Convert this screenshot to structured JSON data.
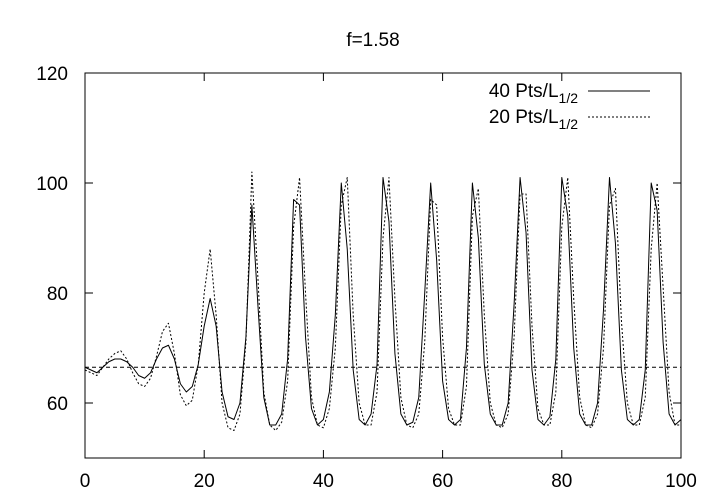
{
  "chart_data": {
    "type": "line",
    "title": "f=1.58",
    "xlabel": "",
    "ylabel": "",
    "xlim": [
      0,
      100
    ],
    "ylim": [
      50,
      120
    ],
    "x_ticks": [
      0,
      20,
      40,
      60,
      80,
      100
    ],
    "y_ticks": [
      60,
      80,
      100,
      120
    ],
    "x_tick_labels": [
      "0",
      "20",
      "40",
      "60",
      "80",
      "100"
    ],
    "y_tick_labels": [
      "60",
      "80",
      "100",
      "120"
    ],
    "legend_position": "top-right",
    "series": [
      {
        "name": "40 Pts/L",
        "name_sub": "1/2",
        "style": "solid",
        "color": "#000000",
        "x": [
          0,
          1,
          2,
          3,
          4,
          5,
          6,
          7,
          8,
          9,
          10,
          11,
          12,
          13,
          14,
          15,
          16,
          17,
          18,
          19,
          20,
          21,
          22,
          23,
          24,
          25,
          26,
          27,
          28,
          29,
          30,
          31,
          32,
          33,
          34,
          35,
          36,
          37,
          38,
          39,
          40,
          41,
          42,
          43,
          44,
          45,
          46,
          47,
          48,
          49,
          50,
          51,
          52,
          53,
          54,
          55,
          56,
          57,
          58,
          59,
          60,
          61,
          62,
          63,
          64,
          65,
          66,
          67,
          68,
          69,
          70,
          71,
          72,
          73,
          74,
          75,
          76,
          77,
          78,
          79,
          80,
          81,
          82,
          83,
          84,
          85,
          86,
          87,
          88,
          89,
          90,
          91,
          92,
          93,
          94,
          95,
          96,
          97,
          98,
          99,
          100
        ],
        "y": [
          66.5,
          66.0,
          65.5,
          66.5,
          67.5,
          68.0,
          68.0,
          67.5,
          66.5,
          65.0,
          64.5,
          65.5,
          68.0,
          70.0,
          70.5,
          68.0,
          63.5,
          62.0,
          63.0,
          67.0,
          74.0,
          79.0,
          74.0,
          62.0,
          57.5,
          57.0,
          60.0,
          72.0,
          96.0,
          78.0,
          61.0,
          56.0,
          56.0,
          58.0,
          68.0,
          97.0,
          96.0,
          72.0,
          59.0,
          56.0,
          57.0,
          62.0,
          76.0,
          100.0,
          88.0,
          66.0,
          57.0,
          56.0,
          58.0,
          67.0,
          101.0,
          93.0,
          69.0,
          58.0,
          56.0,
          56.5,
          61.0,
          80.0,
          100.0,
          86.0,
          64.0,
          57.0,
          56.0,
          57.0,
          70.0,
          100.0,
          90.0,
          67.0,
          58.0,
          56.0,
          56.0,
          60.0,
          78.0,
          101.0,
          91.0,
          66.0,
          57.0,
          56.0,
          57.5,
          68.0,
          101.0,
          94.0,
          70.0,
          58.0,
          56.0,
          56.0,
          60.0,
          77.0,
          101.0,
          89.0,
          66.0,
          57.0,
          56.0,
          57.0,
          66.0,
          100.0,
          95.0,
          71.0,
          58.0,
          56.0,
          57.0
        ]
      },
      {
        "name": "20 Pts/L",
        "name_sub": "1/2",
        "style": "dotted",
        "color": "#000000",
        "x": [
          0,
          1,
          2,
          3,
          4,
          5,
          6,
          7,
          8,
          9,
          10,
          11,
          12,
          13,
          14,
          15,
          16,
          17,
          18,
          19,
          20,
          21,
          22,
          23,
          24,
          25,
          26,
          27,
          28,
          29,
          30,
          31,
          32,
          33,
          34,
          35,
          36,
          37,
          38,
          39,
          40,
          41,
          42,
          43,
          44,
          45,
          46,
          47,
          48,
          49,
          50,
          51,
          52,
          53,
          54,
          55,
          56,
          57,
          58,
          59,
          60,
          61,
          62,
          63,
          64,
          65,
          66,
          67,
          68,
          69,
          70,
          71,
          72,
          73,
          74,
          75,
          76,
          77,
          78,
          79,
          80,
          81,
          82,
          83,
          84,
          85,
          86,
          87,
          88,
          89,
          90,
          91,
          92,
          93,
          94,
          95,
          96,
          97,
          98,
          99,
          100
        ],
        "y": [
          66.0,
          65.5,
          65.0,
          66.5,
          68.0,
          69.0,
          69.5,
          68.0,
          65.5,
          63.5,
          63.0,
          64.5,
          68.5,
          73.0,
          74.5,
          69.0,
          61.5,
          59.5,
          60.5,
          67.0,
          80.0,
          88.0,
          76.0,
          60.0,
          55.5,
          55.0,
          58.0,
          71.0,
          102.0,
          83.0,
          62.0,
          56.0,
          55.0,
          56.5,
          64.0,
          92.0,
          101.0,
          80.0,
          61.0,
          56.0,
          55.5,
          59.0,
          70.0,
          96.0,
          101.0,
          76.0,
          60.0,
          56.0,
          56.0,
          62.0,
          90.0,
          101.0,
          79.0,
          61.0,
          56.0,
          55.5,
          58.0,
          71.0,
          97.0,
          96.0,
          72.0,
          59.0,
          56.0,
          56.0,
          63.0,
          94.0,
          99.0,
          76.0,
          60.0,
          56.0,
          55.5,
          58.0,
          72.0,
          98.0,
          98.0,
          74.0,
          59.0,
          56.0,
          56.0,
          62.0,
          92.0,
          101.0,
          79.0,
          61.0,
          56.0,
          55.5,
          58.0,
          70.0,
          96.0,
          99.0,
          75.0,
          60.0,
          56.0,
          56.0,
          61.0,
          88.0,
          100.0,
          81.0,
          62.0,
          56.0,
          56.0
        ]
      }
    ],
    "reference_lines": [
      {
        "type": "horizontal",
        "y": 66.5,
        "style": "dashed",
        "color": "#000000"
      }
    ]
  }
}
